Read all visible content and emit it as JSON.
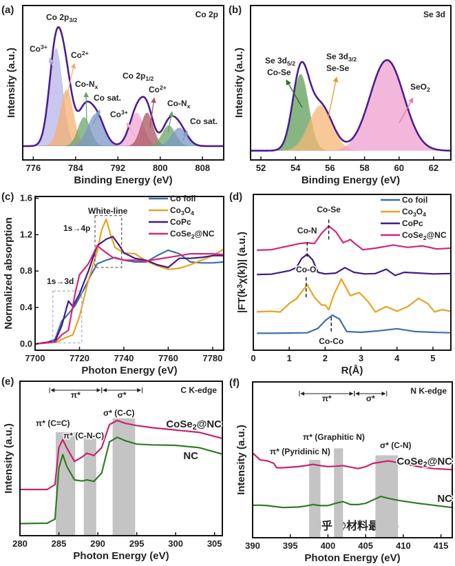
{
  "watermark": "知乎 @材料最Top",
  "chart_data": [
    {
      "id": "a",
      "panel_label": "(a)",
      "type": "area",
      "title": "Co 2p",
      "xlabel": "Binding Energy (eV)",
      "ylabel": "Intensity (a.u.)",
      "xlim": [
        774,
        812
      ],
      "ylim": [
        -0.12,
        1.22
      ],
      "xticks": [
        776,
        784,
        792,
        800,
        808
      ],
      "envelope_color": "#4b1d8f",
      "components": [
        {
          "label": "Co^{3+}",
          "center": 780.3,
          "height": 0.85,
          "fwhm": 3.0,
          "color": "#b7b4ea"
        },
        {
          "label": "Co^{2+}",
          "center": 782.3,
          "height": 0.49,
          "fwhm": 3.0,
          "color": "#f4b070"
        },
        {
          "label": "Co-N_{x}",
          "center": 785.6,
          "height": 0.25,
          "fwhm": 2.8,
          "color": "#6aa56a"
        },
        {
          "label": "Co sat.",
          "center": 787.8,
          "height": 0.28,
          "fwhm": 3.6,
          "color": "#7b97c4"
        },
        {
          "label": "Co^{3+}",
          "center": 795.5,
          "height": 0.29,
          "fwhm": 3.2,
          "color": "#f3a6d2"
        },
        {
          "label": "Co^{2+}",
          "center": 797.5,
          "height": 0.29,
          "fwhm": 2.8,
          "color": "#a9555f"
        },
        {
          "label": "Co-N_{x}",
          "center": 801.6,
          "height": 0.18,
          "fwhm": 3.0,
          "color": "#6aa56a"
        },
        {
          "label": "Co sat.",
          "center": 803.6,
          "height": 0.16,
          "fwhm": 3.4,
          "color": "#7b97c4"
        }
      ],
      "annotations": [
        "Co 2p_{3/2}",
        "Co 2p_{1/2}"
      ]
    },
    {
      "id": "b",
      "panel_label": "(b)",
      "type": "area",
      "title": "Se 3d",
      "xlabel": "Binding Energy (eV)",
      "ylabel": "Intensity (a.u.)",
      "xlim": [
        51.4,
        63
      ],
      "ylim": [
        -0.1,
        1.57
      ],
      "xticks": [
        52,
        54,
        56,
        58,
        60,
        62
      ],
      "envelope_color": "#4b1d8f",
      "components": [
        {
          "label": "Se 3d_{5/2}|Co-Se",
          "center": 54.3,
          "height": 0.83,
          "fwhm": 1.1,
          "color": "#5f9e5a"
        },
        {
          "label": "Se 3d_{3/2}|Se-Se",
          "center": 55.45,
          "height": 0.49,
          "fwhm": 1.6,
          "color": "#f6b774"
        },
        {
          "label": "SeO_{2}",
          "center": 59.3,
          "height": 0.98,
          "fwhm": 2.3,
          "color": "#ef9fcf"
        }
      ]
    },
    {
      "id": "c",
      "panel_label": "(c)",
      "type": "line",
      "xlabel": "Photon Energy (eV)",
      "ylabel": "Normalized absorption",
      "xlim": [
        7700,
        7785
      ],
      "ylim": [
        -0.07,
        1.62
      ],
      "xticks": [
        7700,
        7720,
        7740,
        7760,
        7780
      ],
      "yticks": [
        0.0,
        0.4,
        0.8,
        1.2,
        1.6
      ],
      "legend": "top-right",
      "series": [
        {
          "name": "Co foil",
          "color": "#3d6fa8",
          "x": [
            7700,
            7705,
            7709,
            7712,
            7715,
            7718,
            7722,
            7725,
            7728,
            7732,
            7736,
            7740,
            7745,
            7750,
            7755,
            7760,
            7765,
            7770,
            7775,
            7780,
            7785
          ],
          "y": [
            0,
            0.01,
            0.05,
            0.25,
            0.33,
            0.42,
            0.6,
            0.75,
            0.88,
            0.92,
            0.95,
            0.92,
            0.9,
            0.9,
            0.97,
            1.03,
            0.99,
            0.9,
            0.89,
            0.89,
            0.9
          ]
        },
        {
          "name": "Co_{3}O_{4}",
          "color": "#e8a31e",
          "x": [
            7700,
            7710,
            7713,
            7717,
            7720,
            7724,
            7728,
            7730,
            7732,
            7734,
            7736,
            7740,
            7745,
            7750,
            7755,
            7760,
            7765,
            7770,
            7775,
            7780,
            7785
          ],
          "y": [
            0,
            0.02,
            0.06,
            0.1,
            0.3,
            0.7,
            1.02,
            1.25,
            1.37,
            1.2,
            1.06,
            1.0,
            0.99,
            0.91,
            0.86,
            0.82,
            0.83,
            0.87,
            0.92,
            0.97,
            1.04
          ]
        },
        {
          "name": "CoPc",
          "color": "#3f1a8a",
          "x": [
            7700,
            7709,
            7712,
            7715,
            7717,
            7720,
            7724,
            7728,
            7732,
            7735,
            7738,
            7740,
            7745,
            7750,
            7755,
            7760,
            7765,
            7770,
            7775,
            7780,
            7785
          ],
          "y": [
            0,
            0.03,
            0.2,
            0.47,
            0.41,
            0.55,
            0.8,
            1.08,
            1.15,
            1.18,
            1.08,
            1.0,
            0.94,
            0.92,
            0.87,
            0.84,
            0.94,
            0.94,
            0.95,
            0.97,
            0.97
          ]
        },
        {
          "name": "CoSe_{2}@NC",
          "color": "#d4257a",
          "x": [
            7700,
            7709,
            7712,
            7715,
            7718,
            7720,
            7724,
            7728,
            7731,
            7735,
            7740,
            7745,
            7750,
            7755,
            7760,
            7765,
            7770,
            7775,
            7780,
            7785
          ],
          "y": [
            0,
            0.02,
            0.1,
            0.15,
            0.55,
            0.76,
            0.88,
            1.08,
            1.02,
            0.95,
            0.92,
            0.92,
            0.91,
            0.93,
            0.95,
            0.97,
            0.99,
            0.99,
            0.99,
            0.98
          ]
        }
      ],
      "regions": [
        {
          "label": "White-line",
          "sublabel": "1s→4p",
          "x": [
            7727,
            7739
          ],
          "y": [
            0.84,
            1.41
          ],
          "color": "#2e7d22"
        },
        {
          "label": "1s→3d",
          "x": [
            7708,
            7721
          ],
          "y": [
            0.01,
            0.58
          ],
          "color": "#a9a6df"
        }
      ]
    },
    {
      "id": "d",
      "panel_label": "(d)",
      "type": "line",
      "xlabel": "R(Å)",
      "ylabel": "|FT(k^{3}χ(k))| (a.u.)",
      "xlim": [
        0,
        5.5
      ],
      "ylim": [
        0,
        10
      ],
      "xticks": [
        0,
        1,
        2,
        3,
        4,
        5
      ],
      "legend": "top-right",
      "series": [
        {
          "name": "Co foil",
          "color": "#3d6fa8",
          "x": [
            0.1,
            0.5,
            1,
            1.5,
            1.8,
            2.0,
            2.2,
            2.4,
            2.6,
            3,
            3.5,
            4,
            4.5,
            5,
            5.5
          ],
          "y": [
            1.09,
            1.09,
            1.1,
            1.12,
            1.4,
            1.9,
            2.25,
            2.0,
            1.2,
            1.15,
            1.25,
            1.38,
            1.2,
            1.15,
            1.12
          ]
        },
        {
          "name": "Co_{3}O_{4}",
          "color": "#e8a31e",
          "x": [
            0.1,
            0.5,
            0.75,
            1,
            1.2,
            1.5,
            1.7,
            1.9,
            2.0,
            2.1,
            2.25,
            2.45,
            2.7,
            2.95,
            3.2,
            3.4,
            3.7,
            4.0,
            4.3,
            4.6,
            4.85,
            5.05,
            5.25,
            5.5
          ],
          "y": [
            2.46,
            2.5,
            2.45,
            3.0,
            3.3,
            4.2,
            3.4,
            2.9,
            2.9,
            2.6,
            3.6,
            4.57,
            3.5,
            3.7,
            3.1,
            2.45,
            2.8,
            2.5,
            2.8,
            3.33,
            3.0,
            2.45,
            2.6,
            2.5
          ]
        },
        {
          "name": "CoPc",
          "color": "#3f1a8a",
          "x": [
            0.1,
            0.5,
            1,
            1.2,
            1.35,
            1.5,
            1.65,
            1.8,
            2.0,
            2.3,
            2.55,
            2.8,
            3.1,
            3.4,
            3.7,
            3.95,
            4.2,
            4.6,
            5,
            5.5
          ],
          "y": [
            4.86,
            4.88,
            5.1,
            5.3,
            5.9,
            6.16,
            5.8,
            5.0,
            4.9,
            4.95,
            5.3,
            5.0,
            4.9,
            4.92,
            5.2,
            4.8,
            5.0,
            4.95,
            4.9,
            4.92
          ]
        },
        {
          "name": "CoSe_{2}@NC",
          "color": "#d4257a",
          "x": [
            0.1,
            0.5,
            1,
            1.3,
            1.5,
            1.7,
            1.9,
            2.1,
            2.3,
            2.5,
            2.7,
            2.85,
            3.05,
            3.4,
            3.9,
            4.3,
            4.7,
            5.1,
            5.5
          ],
          "y": [
            6.42,
            6.45,
            6.7,
            6.85,
            6.9,
            6.85,
            7.5,
            7.97,
            7.6,
            6.9,
            7.1,
            6.8,
            6.45,
            6.55,
            6.75,
            6.6,
            6.7,
            6.5,
            6.55
          ]
        }
      ],
      "markers": [
        {
          "label": "Co-Se",
          "x": 2.1
        },
        {
          "label": "Co-N",
          "x": 1.5
        },
        {
          "label": "Co-O",
          "x": 1.47
        },
        {
          "label": "Co-Co",
          "x": 2.17
        }
      ]
    },
    {
      "id": "e",
      "panel_label": "(e)",
      "type": "line",
      "title": "C K-edge",
      "xlabel": "Photon Energy (eV)",
      "ylabel": "Intensity (a.u.)",
      "xlim": [
        280,
        306
      ],
      "ylim": [
        0,
        10
      ],
      "xticks": [
        280,
        285,
        290,
        295,
        300,
        305
      ],
      "series": [
        {
          "name": "CoSe_{2}@NC",
          "color": "#c8236e",
          "x": [
            280,
            283.5,
            284.5,
            285,
            285.5,
            286,
            287,
            288,
            288.6,
            289.5,
            290.5,
            291.5,
            292.5,
            293.5,
            295,
            297,
            300,
            303,
            306
          ],
          "y": [
            2.99,
            2.99,
            3.31,
            5.7,
            6.22,
            5.7,
            4.81,
            5.1,
            5.34,
            5.19,
            5.7,
            7.19,
            7.46,
            7.28,
            7.13,
            6.99,
            6.84,
            6.69,
            6.3
          ]
        },
        {
          "name": "NC",
          "color": "#2e7d22",
          "x": [
            280,
            283.5,
            284.5,
            285,
            285.5,
            286,
            287,
            288,
            288.6,
            289.5,
            290.5,
            291.5,
            292.5,
            293.5,
            295,
            297,
            300,
            303,
            306
          ],
          "y": [
            0.78,
            0.81,
            1.07,
            4.36,
            5.25,
            4.51,
            3.61,
            3.54,
            3.61,
            3.52,
            4.06,
            6.07,
            6.37,
            6.15,
            5.93,
            5.88,
            5.85,
            5.7,
            5.28
          ]
        }
      ],
      "bands": [
        {
          "label": "π* (C=C)",
          "x": [
            284.6,
            287.1
          ]
        },
        {
          "label": "π* (C-N-C)",
          "x": [
            288.2,
            289.8
          ]
        },
        {
          "label": "σ* (C-C)",
          "x": [
            291.9,
            294.8
          ]
        }
      ],
      "ranges": [
        {
          "label": "π*",
          "x": [
            283.8,
            290.5
          ]
        },
        {
          "label": "σ*",
          "x": [
            290.5,
            295.7
          ]
        }
      ]
    },
    {
      "id": "f",
      "panel_label": "(f)",
      "type": "line",
      "title": "N K-edge",
      "xlabel": "Photon Energy (eV)",
      "ylabel": "Intensity (a.u.)",
      "xlim": [
        390,
        416.5
      ],
      "ylim": [
        0,
        10
      ],
      "xticks": [
        390,
        395,
        400,
        405,
        410,
        415
      ],
      "series": [
        {
          "name": "CoSe_{2}@NC",
          "color": "#c8236e",
          "x": [
            390,
            391,
            392,
            392.8,
            393.2,
            394,
            396,
            397,
            398,
            399,
            400,
            401,
            402,
            403,
            404,
            405,
            406,
            407,
            408,
            409,
            410,
            412,
            414,
            416.5
          ],
          "y": [
            5.44,
            5.0,
            4.93,
            4.78,
            4.49,
            4.49,
            4.56,
            4.63,
            4.71,
            4.63,
            4.56,
            4.59,
            4.63,
            4.53,
            4.44,
            4.56,
            4.78,
            4.85,
            4.93,
            4.85,
            4.78,
            4.56,
            4.44,
            4.37
          ]
        },
        {
          "name": "NC",
          "color": "#2e7d22",
          "x": [
            390,
            391,
            392,
            392.8,
            393.2,
            394,
            396,
            397,
            398,
            399,
            400,
            401,
            402,
            403,
            404,
            405,
            406,
            407,
            408,
            409,
            410,
            412,
            414,
            416.5
          ],
          "y": [
            2.09,
            2.09,
            2.06,
            2.01,
            1.99,
            1.94,
            1.97,
            2.03,
            2.13,
            2.06,
            2.06,
            2.21,
            2.32,
            2.13,
            2.13,
            2.21,
            2.43,
            2.65,
            2.53,
            2.43,
            2.35,
            2.21,
            2.09,
            1.94
          ]
        }
      ],
      "bands": [
        {
          "label": "π* (Pyridinic N)",
          "x": [
            397.5,
            399.0
          ]
        },
        {
          "label": "π* (Graphitic N)",
          "x": [
            400.8,
            402.0
          ]
        },
        {
          "label": "σ* (C-N)",
          "x": [
            406.3,
            409.3
          ]
        }
      ],
      "ranges": [
        {
          "label": "π*",
          "x": [
            396.2,
            403.5
          ]
        },
        {
          "label": "σ*",
          "x": [
            403.5,
            407.8
          ]
        }
      ]
    }
  ]
}
